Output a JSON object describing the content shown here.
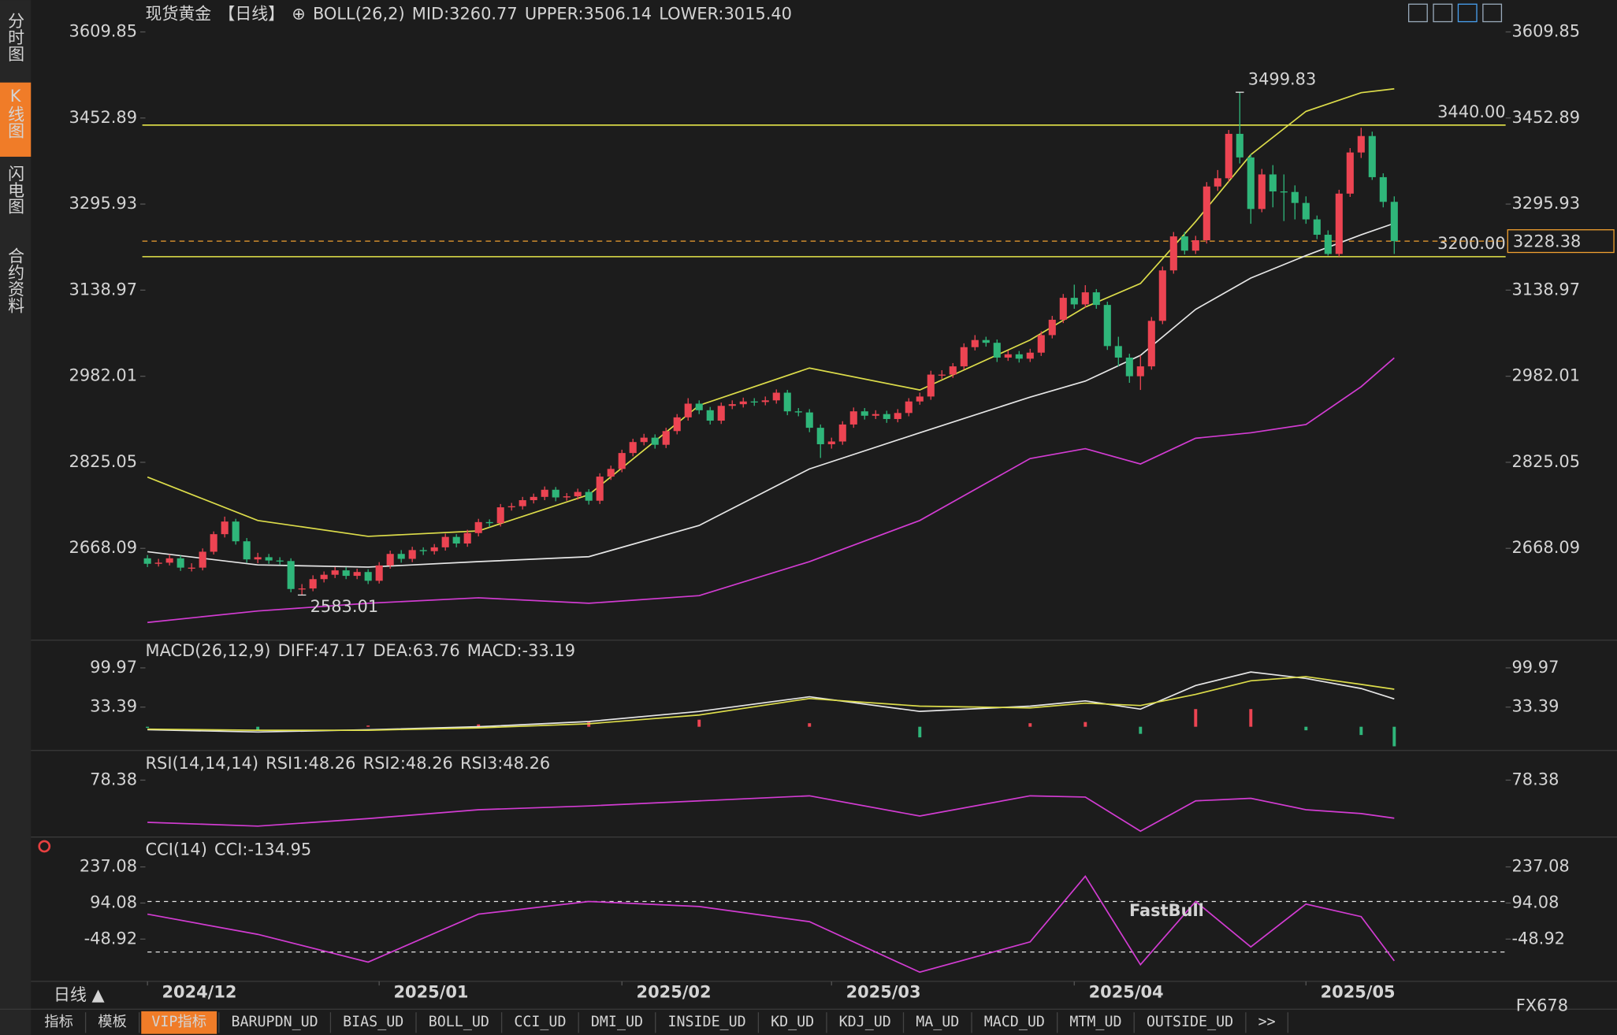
{
  "chart_data": [
    {
      "type": "candlestick",
      "header": [
        {
          "text": "现货黄金",
          "color": "#e6e6e6"
        },
        {
          "text": "【日线】",
          "color": "#f07c28"
        },
        {
          "text": "⊕",
          "color": "#f07c28"
        },
        {
          "text": "BOLL(26,2)",
          "color": "#e6e6e6"
        },
        {
          "text": "MID:3260.77",
          "color": "#e6e6e6"
        },
        {
          "text": "UPPER:3506.14",
          "color": "#dcdc4a"
        },
        {
          "text": "LOWER:3015.40",
          "color": "#d23cd2"
        }
      ],
      "up_color": "#ec4452",
      "down_color": "#2fb67a",
      "high_color": "#f04848",
      "low_color": "#3cc088",
      "xlim": [
        0,
        113
      ],
      "ylim": [
        2512,
        3668
      ],
      "yticks": [
        3609.85,
        3452.89,
        3295.93,
        3138.97,
        2982.01,
        2825.05,
        2668.09
      ],
      "candles": [
        [
          2650,
          2656,
          2634,
          2640
        ],
        [
          2640,
          2649,
          2635,
          2642
        ],
        [
          2642,
          2657,
          2637,
          2650
        ],
        [
          2650,
          2655,
          2627,
          2633
        ],
        [
          2633,
          2641,
          2626,
          2633
        ],
        [
          2633,
          2668,
          2628,
          2662
        ],
        [
          2662,
          2699,
          2657,
          2694
        ],
        [
          2694,
          2726,
          2688,
          2717
        ],
        [
          2717,
          2722,
          2675,
          2681
        ],
        [
          2681,
          2687,
          2642,
          2648
        ],
        [
          2648,
          2660,
          2641,
          2652
        ],
        [
          2652,
          2658,
          2640,
          2646
        ],
        [
          2646,
          2652,
          2638,
          2645
        ],
        [
          2645,
          2650,
          2588,
          2594
        ],
        [
          2594,
          2603,
          2583.01,
          2595
        ],
        [
          2595,
          2619,
          2590,
          2612
        ],
        [
          2612,
          2626,
          2606,
          2620
        ],
        [
          2620,
          2634,
          2614,
          2628
        ],
        [
          2628,
          2634,
          2612,
          2618
        ],
        [
          2618,
          2631,
          2612,
          2625
        ],
        [
          2625,
          2630,
          2603,
          2609
        ],
        [
          2609,
          2643,
          2604,
          2637
        ],
        [
          2637,
          2664,
          2631,
          2658
        ],
        [
          2658,
          2665,
          2642,
          2649
        ],
        [
          2649,
          2671,
          2643,
          2665
        ],
        [
          2665,
          2670,
          2656,
          2663
        ],
        [
          2663,
          2676,
          2657,
          2670
        ],
        [
          2670,
          2695,
          2664,
          2689
        ],
        [
          2689,
          2694,
          2670,
          2677
        ],
        [
          2677,
          2702,
          2671,
          2696
        ],
        [
          2696,
          2722,
          2690,
          2716
        ],
        [
          2716,
          2721,
          2707,
          2714
        ],
        [
          2714,
          2749,
          2708,
          2743
        ],
        [
          2743,
          2751,
          2737,
          2745
        ],
        [
          2745,
          2762,
          2739,
          2756
        ],
        [
          2756,
          2768,
          2750,
          2762
        ],
        [
          2762,
          2781,
          2756,
          2775
        ],
        [
          2775,
          2780,
          2754,
          2761
        ],
        [
          2761,
          2769,
          2755,
          2763
        ],
        [
          2763,
          2777,
          2757,
          2771
        ],
        [
          2771,
          2776,
          2748,
          2755
        ],
        [
          2755,
          2805,
          2749,
          2799
        ],
        [
          2799,
          2819,
          2793,
          2813
        ],
        [
          2813,
          2848,
          2807,
          2842
        ],
        [
          2842,
          2868,
          2836,
          2862
        ],
        [
          2862,
          2877,
          2856,
          2870
        ],
        [
          2870,
          2876,
          2850,
          2857
        ],
        [
          2857,
          2888,
          2851,
          2882
        ],
        [
          2882,
          2913,
          2876,
          2907
        ],
        [
          2907,
          2942,
          2901,
          2932
        ],
        [
          2932,
          2938,
          2913,
          2920
        ],
        [
          2920,
          2926,
          2894,
          2901
        ],
        [
          2901,
          2934,
          2895,
          2928
        ],
        [
          2928,
          2938,
          2922,
          2931
        ],
        [
          2931,
          2943,
          2925,
          2936
        ],
        [
          2936,
          2942,
          2928,
          2935
        ],
        [
          2935,
          2945,
          2929,
          2938
        ],
        [
          2938,
          2958,
          2932,
          2952
        ],
        [
          2952,
          2957,
          2911,
          2918
        ],
        [
          2918,
          2924,
          2909,
          2916
        ],
        [
          2916,
          2922,
          2880,
          2888
        ],
        [
          2888,
          2894,
          2833,
          2858
        ],
        [
          2858,
          2870,
          2850,
          2863
        ],
        [
          2863,
          2900,
          2857,
          2894
        ],
        [
          2894,
          2925,
          2888,
          2918
        ],
        [
          2918,
          2924,
          2903,
          2910
        ],
        [
          2910,
          2920,
          2904,
          2913
        ],
        [
          2913,
          2919,
          2897,
          2904
        ],
        [
          2904,
          2922,
          2898,
          2915
        ],
        [
          2915,
          2942,
          2909,
          2936
        ],
        [
          2936,
          2952,
          2930,
          2945
        ],
        [
          2945,
          2992,
          2939,
          2985
        ],
        [
          2985,
          2993,
          2977,
          2985
        ],
        [
          2985,
          3006,
          2979,
          3000
        ],
        [
          3000,
          3042,
          2994,
          3035
        ],
        [
          3035,
          3057,
          3029,
          3048
        ],
        [
          3048,
          3054,
          3036,
          3043
        ],
        [
          3043,
          3049,
          3008,
          3016
        ],
        [
          3016,
          3029,
          3010,
          3022
        ],
        [
          3022,
          3028,
          3007,
          3014
        ],
        [
          3014,
          3032,
          3008,
          3025
        ],
        [
          3025,
          3064,
          3019,
          3057
        ],
        [
          3057,
          3092,
          3051,
          3085
        ],
        [
          3085,
          3132,
          3079,
          3125
        ],
        [
          3125,
          3149,
          3105,
          3113
        ],
        [
          3113,
          3148,
          3107,
          3135
        ],
        [
          3135,
          3141,
          3105,
          3112
        ],
        [
          3112,
          3118,
          3030,
          3037
        ],
        [
          3037,
          3054,
          3000,
          3016
        ],
        [
          3016,
          3023,
          2970,
          2982
        ],
        [
          2982,
          3020,
          2957,
          3000
        ],
        [
          3000,
          3090,
          2994,
          3083
        ],
        [
          3083,
          3182,
          3077,
          3175
        ],
        [
          3175,
          3245,
          3169,
          3237
        ],
        [
          3237,
          3245,
          3204,
          3211
        ],
        [
          3211,
          3238,
          3205,
          3230
        ],
        [
          3230,
          3336,
          3224,
          3328
        ],
        [
          3328,
          3358,
          3320,
          3343
        ],
        [
          3343,
          3431,
          3337,
          3424
        ],
        [
          3424,
          3499.83,
          3370,
          3381
        ],
        [
          3381,
          3387,
          3260,
          3287
        ],
        [
          3287,
          3360,
          3281,
          3350
        ],
        [
          3350,
          3367,
          3290,
          3319
        ],
        [
          3319,
          3350,
          3265,
          3318
        ],
        [
          3318,
          3330,
          3268,
          3298
        ],
        [
          3298,
          3310,
          3260,
          3268
        ],
        [
          3268,
          3275,
          3232,
          3240
        ],
        [
          3240,
          3248,
          3202,
          3205
        ],
        [
          3205,
          3322,
          3200,
          3315
        ],
        [
          3315,
          3398,
          3309,
          3390
        ],
        [
          3390,
          3435,
          3380,
          3420
        ],
        [
          3420,
          3428,
          3340,
          3345
        ],
        [
          3345,
          3352,
          3290,
          3300
        ],
        [
          3300,
          3310,
          3205,
          3228.38
        ]
      ],
      "boll": {
        "x": [
          0,
          10,
          20,
          30,
          40,
          50,
          60,
          70,
          80,
          85,
          90,
          95,
          100,
          105,
          110,
          113
        ],
        "series": [
          {
            "color": "#e6e6e6",
            "values": [
              2662,
              2638,
              2634,
              2644,
              2653,
              2710,
              2813,
              2879,
              2944,
              2973,
              3020,
              3104,
              3161,
              3202,
              3240,
              3260.77
            ]
          },
          {
            "color": "#dcdc4a",
            "values": [
              2798,
              2719,
              2690,
              2700,
              2766,
              2929,
              2997,
              2957,
              3048,
              3108,
              3151,
              3264,
              3386,
              3465,
              3499,
              3506.14
            ]
          },
          {
            "color": "#d23cd2",
            "values": [
              2533,
              2554,
              2568,
              2578,
              2568,
              2582,
              2644,
              2719,
              2832,
              2850,
              2822,
              2869,
              2879,
              2894,
              2963,
              3015.4
            ]
          }
        ]
      },
      "levels": [
        {
          "value": 3440,
          "label": "3440.00",
          "color": "#e6e64a"
        },
        {
          "value": 3200,
          "label": "3200.00",
          "color": "#e6e64a"
        }
      ],
      "last": 3228.38,
      "last_color": "#f0a030"
    },
    {
      "type": "line",
      "header": [
        {
          "text": "MACD(26,12,9)",
          "color": "#e6e6e6"
        },
        {
          "text": "DIFF:47.17",
          "color": "#e6e6e6"
        },
        {
          "text": "DEA:63.76",
          "color": "#dcdc4a"
        },
        {
          "text": "MACD:-33.19",
          "color": "#d23cd2"
        }
      ],
      "xlim": [
        0,
        113
      ],
      "ylim": [
        -35,
        140
      ],
      "yticks": [
        99.97,
        33.39
      ],
      "x": [
        0,
        10,
        20,
        30,
        40,
        50,
        60,
        70,
        80,
        85,
        90,
        95,
        100,
        105,
        110,
        113
      ],
      "series": [
        {
          "color": "#e6e6e6",
          "values": [
            -5,
            -9,
            -5,
            0,
            9,
            26,
            51,
            26,
            35,
            44,
            30,
            70,
            93,
            82,
            65,
            47.17
          ]
        },
        {
          "color": "#dcdc4a",
          "values": [
            -4,
            -6,
            -6,
            -2,
            5,
            20,
            48,
            35,
            32,
            40,
            36,
            55,
            78,
            85,
            72,
            63.76
          ]
        }
      ],
      "bars": {
        "values": [
          -2,
          -6,
          2,
          4,
          8,
          12,
          6,
          -18,
          6,
          8,
          -12,
          30,
          30,
          -6,
          -14,
          -33.19
        ],
        "up_color": "#ec4452",
        "down_color": "#2fb67a"
      }
    },
    {
      "type": "line",
      "header": [
        {
          "text": "RSI(14,14,14)",
          "color": "#e6e6e6"
        },
        {
          "text": "RSI1:48.26",
          "color": "#e6e6e6"
        },
        {
          "text": "RSI2:48.26",
          "color": "#dcdc4a"
        },
        {
          "text": "RSI3:48.26",
          "color": "#d23cd2"
        }
      ],
      "xlim": [
        0,
        113
      ],
      "ylim": [
        35,
        88
      ],
      "yticks": [
        78.38
      ],
      "x": [
        0,
        10,
        20,
        30,
        40,
        50,
        60,
        70,
        80,
        85,
        90,
        95,
        100,
        105,
        110,
        113
      ],
      "series": [
        {
          "color": "#d23cd2",
          "values": [
            45,
            42,
            48,
            55,
            58,
            62,
            66,
            50,
            66,
            65,
            38,
            62,
            64,
            55,
            52,
            48.26
          ]
        }
      ]
    },
    {
      "type": "line",
      "header": [
        {
          "text": "CCI(14)",
          "color": "#e6e6e6"
        },
        {
          "text": "CCI:-134.95",
          "color": "#d23cd2"
        }
      ],
      "xlim": [
        0,
        113
      ],
      "ylim": [
        -208,
        343
      ],
      "yticks": [
        237.08,
        94.08,
        -48.92
      ],
      "ref_lines": [
        100,
        -100
      ],
      "ref_color": "#e6e6e6",
      "x": [
        0,
        10,
        20,
        30,
        40,
        50,
        60,
        70,
        80,
        85,
        90,
        95,
        100,
        105,
        110,
        113
      ],
      "series": [
        {
          "color": "#d23cd2",
          "values": [
            50,
            -30,
            -140,
            50,
            100,
            80,
            20,
            -180,
            -60,
            200,
            -150,
            100,
            -80,
            90,
            40,
            -134.95
          ]
        }
      ],
      "xticks": [
        {
          "value": 0,
          "label": "2024/12"
        },
        {
          "value": 21,
          "label": "2025/01"
        },
        {
          "value": 43,
          "label": "2025/02"
        },
        {
          "value": 62,
          "label": "2025/03"
        },
        {
          "value": 84,
          "label": "2025/04"
        },
        {
          "value": 105,
          "label": "2025/05"
        }
      ]
    }
  ],
  "side_tabs": [
    "分时图",
    "K线图",
    "闪电图",
    "合约资料"
  ],
  "side_active": "K线图",
  "period": "日线 ▲",
  "toolbar": [
    "指标",
    "模板",
    "VIP指标",
    "BARUPDN_UD",
    "BIAS_UD",
    "BOLL_UD",
    "CCI_UD",
    "DMI_UD",
    "INSIDE_UD",
    "KD_UD",
    "KDJ_UD",
    "MA_UD",
    "MACD_UD",
    "MTM_UD",
    "OUTSIDE_UD",
    ">>"
  ],
  "toolbar_active": "VIP指标",
  "brand": "FX678",
  "watermark": "FastBull"
}
